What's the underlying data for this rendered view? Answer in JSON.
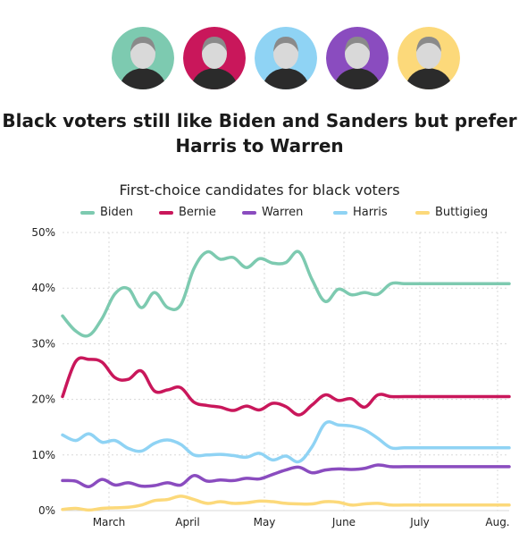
{
  "headline": "Black voters still like Biden and Sanders but prefer Harris to Warren",
  "portraits": [
    {
      "name": "biden-portrait",
      "color": "#7dcab0"
    },
    {
      "name": "sanders-portrait",
      "color": "#c9175b"
    },
    {
      "name": "harris-portrait",
      "color": "#8fd3f4"
    },
    {
      "name": "warren-portrait",
      "color": "#8a4cbf"
    },
    {
      "name": "buttigieg-portrait",
      "color": "#fcd97a"
    }
  ],
  "chart_data": {
    "type": "line",
    "title": "First-choice candidates for black voters",
    "xlabel": "",
    "ylabel": "",
    "ylim": [
      0,
      50
    ],
    "yticks": [
      "0%",
      "10%",
      "20%",
      "30%",
      "40%",
      "50%"
    ],
    "xticks": [
      "March",
      "April",
      "May",
      "June",
      "July",
      "Aug."
    ],
    "grid": true,
    "legend": "top",
    "x": [
      "Feb 18",
      "Feb 23",
      "Mar 1",
      "Mar 6",
      "Mar 11",
      "Mar 16",
      "Mar 21",
      "Mar 26",
      "Mar 31",
      "Apr 4",
      "Apr 9",
      "Apr 14",
      "Apr 19",
      "Apr 24",
      "Apr 29",
      "May 4",
      "May 9",
      "May 14",
      "May 19",
      "May 24",
      "May 29",
      "Jun 3",
      "Jun 8",
      "Jun 13",
      "Jun 18",
      "Jun 23",
      "Jun 28",
      "Jul 3",
      "Jul 8",
      "Jul 13",
      "Jul 18",
      "Jul 23",
      "Jul 28",
      "Aug 2",
      "Aug 7"
    ],
    "series": [
      {
        "name": "Biden",
        "color": "#7dcab0",
        "values": [
          35,
          32.3,
          31.5,
          34.5,
          39,
          39.9,
          36.5,
          39.2,
          36.5,
          37,
          43.5,
          46.5,
          45.2,
          45.5,
          43.7,
          45.3,
          44.5,
          44.6,
          46.5,
          41.5,
          37.6,
          39.8,
          38.8,
          39.2,
          38.9,
          40.8,
          40.8,
          40.8,
          40.8,
          40.8,
          40.8,
          40.8,
          40.8,
          40.8,
          40.8
        ]
      },
      {
        "name": "Bernie",
        "color": "#c9175b",
        "values": [
          20.5,
          26.8,
          27.2,
          26.7,
          23.9,
          23.6,
          25.1,
          21.5,
          21.7,
          22.1,
          19.5,
          18.9,
          18.6,
          18,
          18.8,
          18.1,
          19.3,
          18.7,
          17.2,
          19,
          20.8,
          19.8,
          20.1,
          18.6,
          20.8,
          20.5,
          20.5,
          20.5,
          20.5,
          20.5,
          20.5,
          20.5,
          20.5,
          20.5,
          20.5
        ]
      },
      {
        "name": "Warren",
        "color": "#8a4cbf",
        "values": [
          5.4,
          5.3,
          4.3,
          5.6,
          4.6,
          5,
          4.4,
          4.5,
          5,
          4.6,
          6.3,
          5.3,
          5.5,
          5.4,
          5.8,
          5.7,
          6.5,
          7.3,
          7.8,
          6.8,
          7.3,
          7.5,
          7.4,
          7.6,
          8.2,
          7.9,
          7.9,
          7.9,
          7.9,
          7.9,
          7.9,
          7.9,
          7.9,
          7.9,
          7.9
        ]
      },
      {
        "name": "Harris",
        "color": "#8fd3f4",
        "values": [
          13.6,
          12.6,
          13.8,
          12.3,
          12.6,
          11.2,
          10.7,
          12.1,
          12.7,
          11.9,
          10,
          10,
          10.1,
          9.9,
          9.6,
          10.3,
          9.1,
          9.8,
          8.8,
          11.5,
          15.7,
          15.4,
          15.2,
          14.5,
          13,
          11.3,
          11.3,
          11.3,
          11.3,
          11.3,
          11.3,
          11.3,
          11.3,
          11.3,
          11.3
        ]
      },
      {
        "name": "Buttigieg",
        "color": "#fcd97a",
        "values": [
          0.2,
          0.4,
          0.1,
          0.4,
          0.5,
          0.6,
          1,
          1.8,
          2,
          2.6,
          2,
          1.3,
          1.6,
          1.3,
          1.4,
          1.7,
          1.6,
          1.3,
          1.2,
          1.2,
          1.6,
          1.5,
          1,
          1.2,
          1.3,
          1,
          1,
          1,
          1,
          1,
          1,
          1,
          1,
          1,
          1
        ]
      }
    ]
  }
}
